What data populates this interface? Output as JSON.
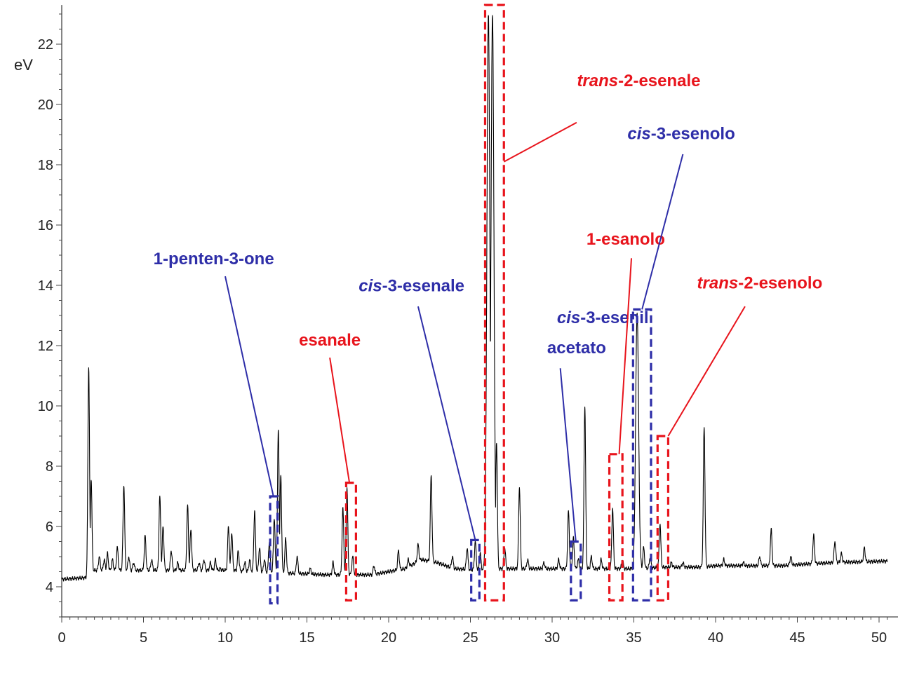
{
  "chart_data": {
    "type": "line",
    "title": "",
    "xlabel": "",
    "ylabel": "eV",
    "xlim": [
      0,
      50.5
    ],
    "ylim": [
      2.7,
      23.3
    ],
    "x_ticks": [
      "0",
      "5",
      "10",
      "15",
      "20",
      "25",
      "30",
      "35",
      "40",
      "45",
      "50"
    ],
    "y_ticks": [
      "4",
      "6",
      "8",
      "10",
      "12",
      "14",
      "16",
      "18",
      "20",
      "22"
    ],
    "grid": false,
    "legend": "none",
    "colors": {
      "line": "#000000",
      "red": "#e8141c",
      "blue": "#2e2ea8",
      "axis": "#444444"
    },
    "baseline": [
      [
        0,
        4.25
      ],
      [
        1.5,
        4.3
      ],
      [
        2,
        4.55
      ],
      [
        5,
        4.55
      ],
      [
        10,
        4.55
      ],
      [
        14,
        4.45
      ],
      [
        16,
        4.4
      ],
      [
        19,
        4.4
      ],
      [
        20,
        4.5
      ],
      [
        21,
        4.6
      ],
      [
        22,
        4.9
      ],
      [
        23,
        4.8
      ],
      [
        24,
        4.6
      ],
      [
        25.5,
        4.55
      ],
      [
        27,
        4.6
      ],
      [
        30,
        4.6
      ],
      [
        33,
        4.6
      ],
      [
        35,
        4.6
      ],
      [
        37,
        4.65
      ],
      [
        39,
        4.65
      ],
      [
        40,
        4.7
      ],
      [
        44,
        4.7
      ],
      [
        47,
        4.8
      ],
      [
        50.5,
        4.85
      ]
    ],
    "peaks": [
      [
        1.65,
        11.3
      ],
      [
        1.8,
        7.6
      ],
      [
        2.3,
        5.0
      ],
      [
        2.6,
        4.9
      ],
      [
        2.8,
        5.1
      ],
      [
        3.1,
        4.9
      ],
      [
        3.4,
        5.3
      ],
      [
        3.8,
        7.4
      ],
      [
        4.1,
        5.0
      ],
      [
        4.4,
        4.8
      ],
      [
        5.1,
        5.7
      ],
      [
        5.5,
        4.9
      ],
      [
        6.0,
        7.0
      ],
      [
        6.2,
        6.0
      ],
      [
        6.7,
        5.2
      ],
      [
        7.1,
        4.8
      ],
      [
        7.7,
        6.7
      ],
      [
        7.9,
        5.9
      ],
      [
        8.4,
        4.8
      ],
      [
        8.7,
        4.9
      ],
      [
        9.1,
        4.8
      ],
      [
        9.4,
        4.9
      ],
      [
        9.7,
        4.6
      ],
      [
        10.2,
        6.0
      ],
      [
        10.4,
        5.8
      ],
      [
        10.8,
        5.2
      ],
      [
        11.2,
        4.8
      ],
      [
        11.5,
        4.9
      ],
      [
        11.8,
        6.5
      ],
      [
        12.1,
        5.3
      ],
      [
        12.4,
        4.9
      ],
      [
        12.7,
        5.5
      ],
      [
        13.0,
        6.3
      ],
      [
        13.25,
        9.2
      ],
      [
        13.4,
        7.7
      ],
      [
        13.7,
        5.6
      ],
      [
        14.4,
        5.0
      ],
      [
        15.2,
        4.6
      ],
      [
        16.6,
        4.8
      ],
      [
        17.2,
        6.6
      ],
      [
        17.45,
        7.3
      ],
      [
        17.8,
        5.0
      ],
      [
        19.1,
        4.7
      ],
      [
        20.6,
        5.2
      ],
      [
        21.2,
        4.9
      ],
      [
        21.8,
        5.4
      ],
      [
        22.6,
        7.7
      ],
      [
        23.9,
        5.0
      ],
      [
        24.8,
        5.3
      ],
      [
        25.3,
        5.5
      ],
      [
        25.6,
        5.1
      ],
      [
        25.9,
        5.3
      ],
      [
        26.1,
        23.0
      ],
      [
        26.35,
        23.0
      ],
      [
        26.6,
        8.8
      ],
      [
        27.1,
        5.3
      ],
      [
        28.0,
        7.3
      ],
      [
        28.5,
        4.9
      ],
      [
        29.5,
        4.8
      ],
      [
        30.4,
        4.9
      ],
      [
        31.0,
        6.5
      ],
      [
        31.3,
        5.6
      ],
      [
        31.6,
        4.9
      ],
      [
        32.0,
        10.0
      ],
      [
        32.4,
        5.0
      ],
      [
        33.0,
        4.9
      ],
      [
        33.7,
        6.6
      ],
      [
        34.3,
        4.9
      ],
      [
        35.2,
        13.1
      ],
      [
        35.6,
        5.3
      ],
      [
        36.0,
        5.0
      ],
      [
        36.6,
        6.1
      ],
      [
        37.3,
        4.8
      ],
      [
        38.0,
        4.8
      ],
      [
        39.3,
        9.3
      ],
      [
        40.5,
        4.9
      ],
      [
        41.7,
        4.8
      ],
      [
        42.7,
        5.0
      ],
      [
        43.4,
        5.9
      ],
      [
        44.6,
        5.0
      ],
      [
        46.0,
        5.7
      ],
      [
        47.3,
        5.5
      ],
      [
        47.7,
        5.1
      ],
      [
        49.1,
        5.3
      ]
    ],
    "boxes": [
      {
        "x0": 12.75,
        "x1": 13.2,
        "y0": 3.45,
        "y1": 7.0,
        "color": "blue"
      },
      {
        "x0": 17.4,
        "x1": 18.0,
        "y0": 3.55,
        "y1": 7.45,
        "color": "red"
      },
      {
        "x0": 25.05,
        "x1": 25.55,
        "y0": 3.55,
        "y1": 5.55,
        "color": "blue"
      },
      {
        "x0": 25.9,
        "x1": 27.05,
        "y0": 3.55,
        "y1": 23.3,
        "color": "red"
      },
      {
        "x0": 31.15,
        "x1": 31.75,
        "y0": 3.55,
        "y1": 5.5,
        "color": "blue"
      },
      {
        "x0": 33.5,
        "x1": 34.3,
        "y0": 3.55,
        "y1": 8.4,
        "color": "red"
      },
      {
        "x0": 34.95,
        "x1": 36.05,
        "y0": 3.55,
        "y1": 13.2,
        "color": "blue"
      },
      {
        "x0": 36.45,
        "x1": 37.1,
        "y0": 3.55,
        "y1": 9.0,
        "color": "red"
      }
    ],
    "annotations": [
      {
        "parts": [
          {
            "t": "1-penten-3-one",
            "i": false
          }
        ],
        "color": "blue",
        "text_x": 9.3,
        "text_y": 14.7,
        "from": [
          10.0,
          14.3
        ],
        "to": [
          12.95,
          7.0
        ]
      },
      {
        "parts": [
          {
            "t": "esanale",
            "i": false
          }
        ],
        "color": "red",
        "text_x": 16.4,
        "text_y": 12.0,
        "from": [
          16.4,
          11.6
        ],
        "to": [
          17.6,
          7.45
        ]
      },
      {
        "parts": [
          {
            "t": "cis",
            "i": true
          },
          {
            "t": "-3-esenale",
            "i": false
          }
        ],
        "color": "blue",
        "text_x": 21.4,
        "text_y": 13.8,
        "from": [
          21.8,
          13.3
        ],
        "to": [
          25.3,
          5.55
        ]
      },
      {
        "parts": [
          {
            "t": "trans",
            "i": true
          },
          {
            "t": "-2-esenale",
            "i": false
          }
        ],
        "color": "red",
        "text_x": 35.3,
        "text_y": 20.6,
        "from": [
          31.5,
          19.4
        ],
        "to": [
          27.05,
          18.1
        ]
      },
      {
        "parts": [
          {
            "t": "cis",
            "i": true
          },
          {
            "t": "-3-esenil",
            "i": false
          }
        ],
        "color": "blue",
        "text_x": 33.1,
        "text_y": 12.75,
        "from": null,
        "to": null
      },
      {
        "parts": [
          {
            "t": "acetato",
            "i": false
          }
        ],
        "color": "blue",
        "text_x": 31.5,
        "text_y": 11.75,
        "from": [
          30.5,
          11.25
        ],
        "to": [
          31.45,
          5.5
        ]
      },
      {
        "parts": [
          {
            "t": "1-esanolo",
            "i": false
          }
        ],
        "color": "red",
        "text_x": 34.5,
        "text_y": 15.35,
        "from": [
          34.85,
          14.9
        ],
        "to": [
          34.1,
          8.4
        ]
      },
      {
        "parts": [
          {
            "t": "cis",
            "i": true
          },
          {
            "t": "-3-esenolo",
            "i": false
          }
        ],
        "color": "blue",
        "text_x": 37.9,
        "text_y": 18.85,
        "from": [
          38.0,
          18.35
        ],
        "to": [
          35.5,
          13.2
        ]
      },
      {
        "parts": [
          {
            "t": "trans",
            "i": true
          },
          {
            "t": "-2-esenolo",
            "i": false
          }
        ],
        "color": "red",
        "text_x": 42.7,
        "text_y": 13.9,
        "from": [
          41.8,
          13.3
        ],
        "to": [
          37.1,
          9.0
        ]
      }
    ]
  }
}
